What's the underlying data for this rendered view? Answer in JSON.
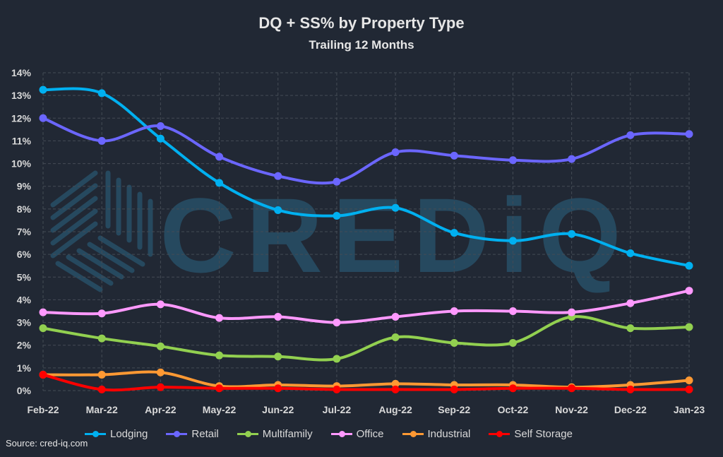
{
  "chart_data": {
    "type": "line",
    "title": "DQ + SS% by Property Type",
    "subtitle": "Trailing 12 Months",
    "xlabel": "",
    "ylabel": "",
    "ylim": [
      0,
      14
    ],
    "yticks": [
      "0%",
      "1%",
      "2%",
      "3%",
      "4%",
      "5%",
      "6%",
      "7%",
      "8%",
      "9%",
      "10%",
      "11%",
      "12%",
      "13%",
      "14%"
    ],
    "categories": [
      "Feb-22",
      "Mar-22",
      "Apr-22",
      "May-22",
      "Jun-22",
      "Jul-22",
      "Aug-22",
      "Sep-22",
      "Oct-22",
      "Nov-22",
      "Dec-22",
      "Jan-23"
    ],
    "grid": true,
    "legend_position": "bottom",
    "series": [
      {
        "name": "Lodging",
        "color": "#00B0F0",
        "values": [
          13.25,
          13.1,
          11.1,
          9.15,
          7.95,
          7.7,
          8.05,
          6.95,
          6.6,
          6.9,
          6.05,
          5.5
        ]
      },
      {
        "name": "Retail",
        "color": "#6B66FF",
        "values": [
          12.0,
          11.0,
          11.65,
          10.3,
          9.45,
          9.2,
          10.5,
          10.35,
          10.15,
          10.2,
          11.25,
          11.3
        ]
      },
      {
        "name": "Multifamily",
        "color": "#92D050",
        "values": [
          2.75,
          2.3,
          1.95,
          1.55,
          1.5,
          1.4,
          2.35,
          2.1,
          2.1,
          3.25,
          2.75,
          2.8
        ]
      },
      {
        "name": "Office",
        "color": "#FF99FF",
        "values": [
          3.45,
          3.4,
          3.8,
          3.2,
          3.25,
          3.0,
          3.25,
          3.5,
          3.5,
          3.45,
          3.85,
          4.4
        ]
      },
      {
        "name": "Industrial",
        "color": "#FF9933",
        "values": [
          0.7,
          0.7,
          0.8,
          0.2,
          0.25,
          0.2,
          0.3,
          0.25,
          0.25,
          0.15,
          0.25,
          0.45
        ]
      },
      {
        "name": "Self Storage",
        "color": "#FF0000",
        "values": [
          0.7,
          0.05,
          0.15,
          0.1,
          0.1,
          0.05,
          0.05,
          0.05,
          0.1,
          0.1,
          0.05,
          0.05
        ]
      }
    ],
    "source": "Source: cred-iq.com",
    "watermark": "CREDiQ"
  }
}
